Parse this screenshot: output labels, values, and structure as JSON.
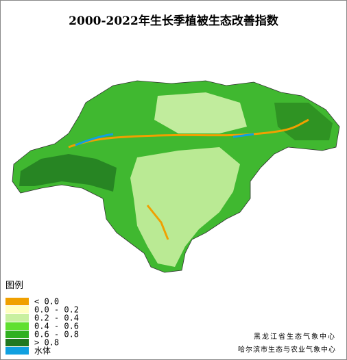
{
  "title": "2000-2022年生长季植被生态改善指数",
  "legend": {
    "title": "图例",
    "items": [
      {
        "label": "< 0.0",
        "color": "#f0a000"
      },
      {
        "label": "0.0 - 0.2",
        "color": "#ffffc0"
      },
      {
        "label": "0.2 - 0.4",
        "color": "#c8f0a0"
      },
      {
        "label": "0.4 - 0.6",
        "color": "#60e030"
      },
      {
        "label": "0.6 - 0.8",
        "color": "#30b020"
      },
      {
        "label": "> 0.8",
        "color": "#207820"
      },
      {
        "label": "水体",
        "color": "#10a0e0"
      }
    ]
  },
  "credits": [
    "黑龙江省生态气象中心",
    "哈尔滨市生态与农业气象中心"
  ]
}
